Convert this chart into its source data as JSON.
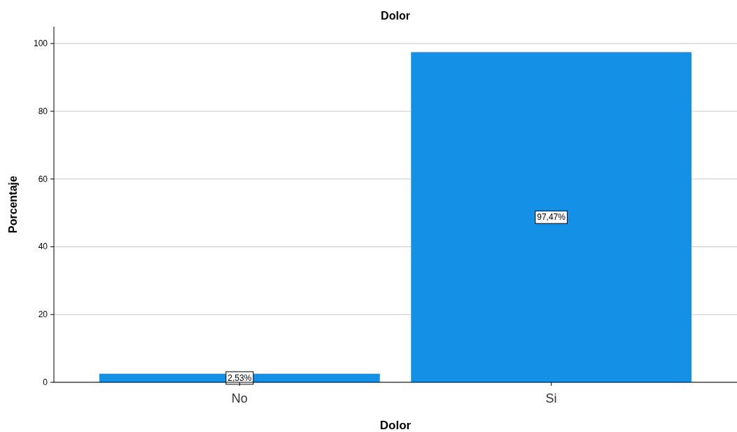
{
  "chart_data": {
    "type": "bar",
    "title": "Dolor",
    "xlabel": "Dolor",
    "ylabel": "Porcentaje",
    "categories": [
      "No",
      "Si"
    ],
    "values": [
      2.53,
      97.47
    ],
    "color": "#1490e6",
    "value_labels": [
      "2,53%",
      "97,47%"
    ],
    "ylim": [
      0,
      105
    ],
    "yticks": [
      0,
      20,
      40,
      60,
      80,
      100
    ],
    "grid": "y"
  }
}
